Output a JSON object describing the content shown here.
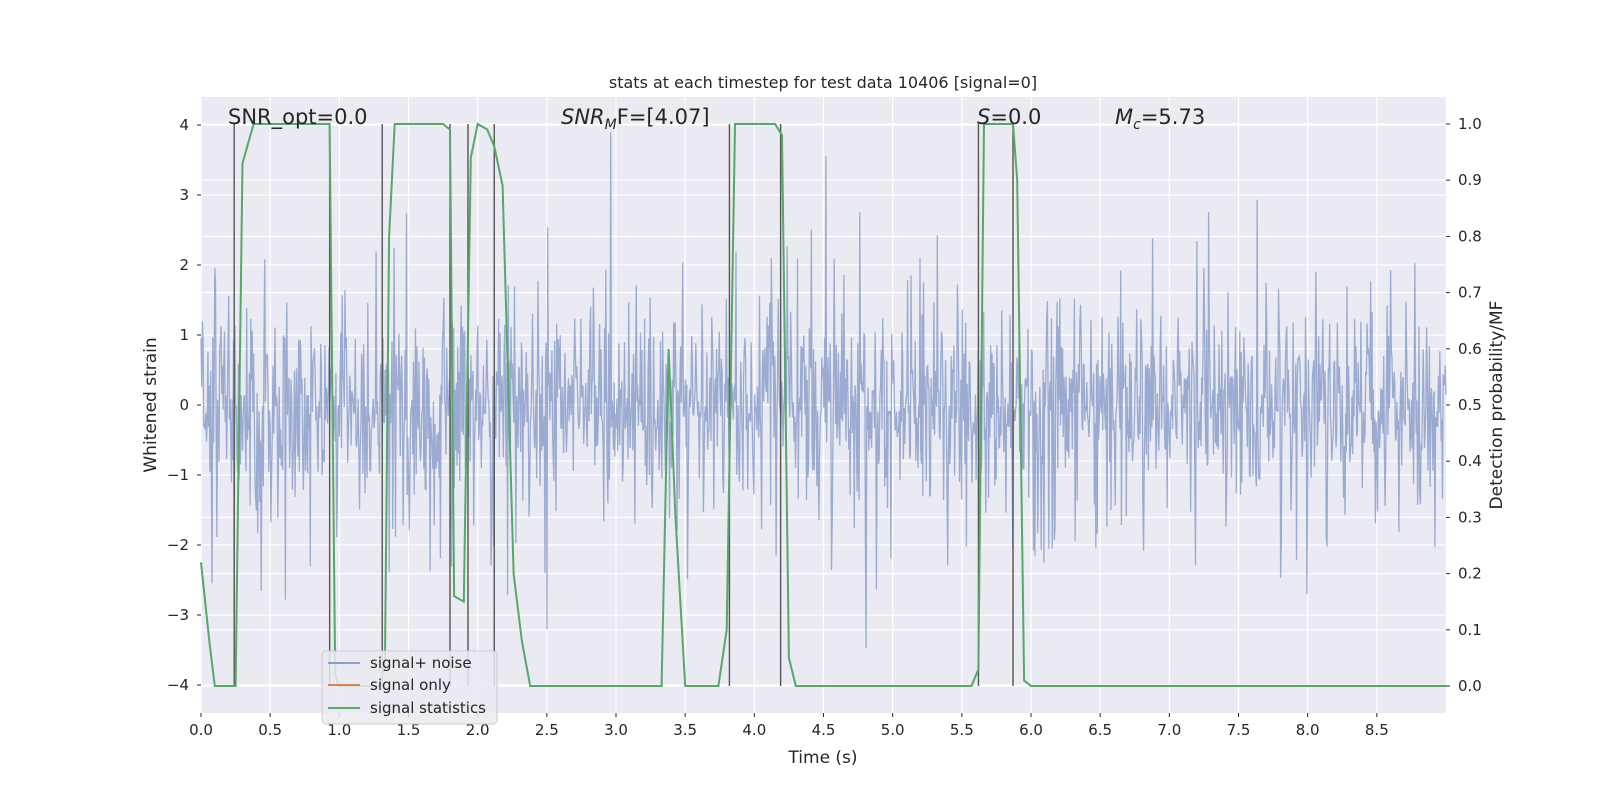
{
  "chart_data": {
    "type": "line",
    "title": "stats at each timestep for test data 10406 [signal=0]",
    "xlabel": "Time (s)",
    "ylabel": "Whitened strain",
    "ylabel_right": "Detection probability/MF",
    "xlim": [
      0,
      9
    ],
    "ylim": [
      -4.4,
      4.4
    ],
    "ylim_right": [
      -0.048,
      1.048
    ],
    "x_ticks": [
      0.0,
      0.5,
      1.0,
      1.5,
      2.0,
      2.5,
      3.0,
      3.5,
      4.0,
      4.5,
      5.0,
      5.5,
      6.0,
      6.5,
      7.0,
      7.5,
      8.0,
      8.5
    ],
    "x_tick_labels": [
      "0.0",
      "0.5",
      "1.0",
      "1.5",
      "2.0",
      "2.5",
      "3.0",
      "3.5",
      "4.0",
      "4.5",
      "5.0",
      "5.5",
      "6.0",
      "6.5",
      "7.0",
      "7.5",
      "8.0",
      "8.5"
    ],
    "y_ticks": [
      -4,
      -3,
      -2,
      -1,
      0,
      1,
      2,
      3,
      4
    ],
    "y_tick_labels": [
      "−4",
      "−3",
      "−2",
      "−1",
      "0",
      "1",
      "2",
      "3",
      "4"
    ],
    "y_right_ticks": [
      0.0,
      0.1,
      0.2,
      0.3,
      0.4,
      0.5,
      0.6,
      0.7,
      0.8,
      0.9,
      1.0
    ],
    "y_right_tick_labels": [
      "0.0",
      "0.1",
      "0.2",
      "0.3",
      "0.4",
      "0.5",
      "0.6",
      "0.7",
      "0.8",
      "0.9",
      "1.0"
    ],
    "grid": true,
    "legend": {
      "placement": "lower-center-left",
      "entries": [
        "signal+ noise",
        "signal only",
        "signal statistics"
      ]
    },
    "annotations": {
      "snr_opt": "SNR_opt=0.0",
      "snr_mf_prefix": "SNR",
      "snr_mf_sub": "M",
      "snr_mf_suffix": "F=[4.07]",
      "s_label": "S",
      "s_value": "=0.0",
      "mc_label": "M",
      "mc_sub": "c",
      "mc_value": "=5.73"
    },
    "noise_series": {
      "name": "signal+ noise",
      "description": "whitened strain noise, dense random samples, roughly ±3 amplitude",
      "x_range": [
        0,
        9
      ],
      "samples": 1800,
      "amplitude_std": 1.0,
      "clip": [
        -4.2,
        3.9
      ],
      "color": "#8c9fca"
    },
    "signal_only_series": {
      "name": "signal only",
      "x": [],
      "y": [],
      "color": "#dd8452"
    },
    "statistics_series": {
      "name": "signal statistics",
      "axis": "right",
      "color": "#55a868",
      "x": [
        0.0,
        0.06,
        0.1,
        0.2,
        0.25,
        0.3,
        0.38,
        0.5,
        0.7,
        0.85,
        0.93,
        0.97,
        1.0,
        1.05,
        1.3,
        1.33,
        1.36,
        1.4,
        1.5,
        1.6,
        1.75,
        1.8,
        1.83,
        1.9,
        1.95,
        2.0,
        2.07,
        2.12,
        2.18,
        2.26,
        2.32,
        2.38,
        2.45,
        2.6,
        2.8,
        3.0,
        3.2,
        3.33,
        3.38,
        3.43,
        3.5,
        3.6,
        3.74,
        3.8,
        3.86,
        3.92,
        4.0,
        4.15,
        4.2,
        4.25,
        4.3,
        4.4,
        4.6,
        5.0,
        5.5,
        5.57,
        5.62,
        5.66,
        5.7,
        5.75,
        5.87,
        5.9,
        5.95,
        6.0,
        6.1,
        6.5,
        7.0,
        7.5,
        8.0,
        8.5,
        9.0
      ],
      "y": [
        0.22,
        0.08,
        0.0,
        0.0,
        0.0,
        0.93,
        1.0,
        1.0,
        1.0,
        1.0,
        1.0,
        0.02,
        0.0,
        0.0,
        0.0,
        0.05,
        0.8,
        1.0,
        1.0,
        1.0,
        1.0,
        0.99,
        0.16,
        0.15,
        0.94,
        1.0,
        0.99,
        0.96,
        0.89,
        0.2,
        0.08,
        0.0,
        0.0,
        0.0,
        0.0,
        0.0,
        0.0,
        0.0,
        0.6,
        0.3,
        0.0,
        0.0,
        0.0,
        0.1,
        1.0,
        1.0,
        1.0,
        1.0,
        0.98,
        0.05,
        0.0,
        0.0,
        0.0,
        0.0,
        0.0,
        0.0,
        0.03,
        1.0,
        1.0,
        1.0,
        1.0,
        0.9,
        0.01,
        0.0,
        0.0,
        0.0,
        0.0,
        0.0,
        0.0,
        0.0,
        0.0
      ]
    },
    "detection_vlines": {
      "description": "grey vertical lines marking detection boundaries",
      "color": "#555555",
      "x": [
        0.24,
        0.93,
        1.31,
        1.8,
        1.93,
        2.12,
        3.82,
        4.19,
        5.62,
        5.87
      ],
      "ymin_right": 0.0,
      "ymax_right": 1.0
    }
  }
}
